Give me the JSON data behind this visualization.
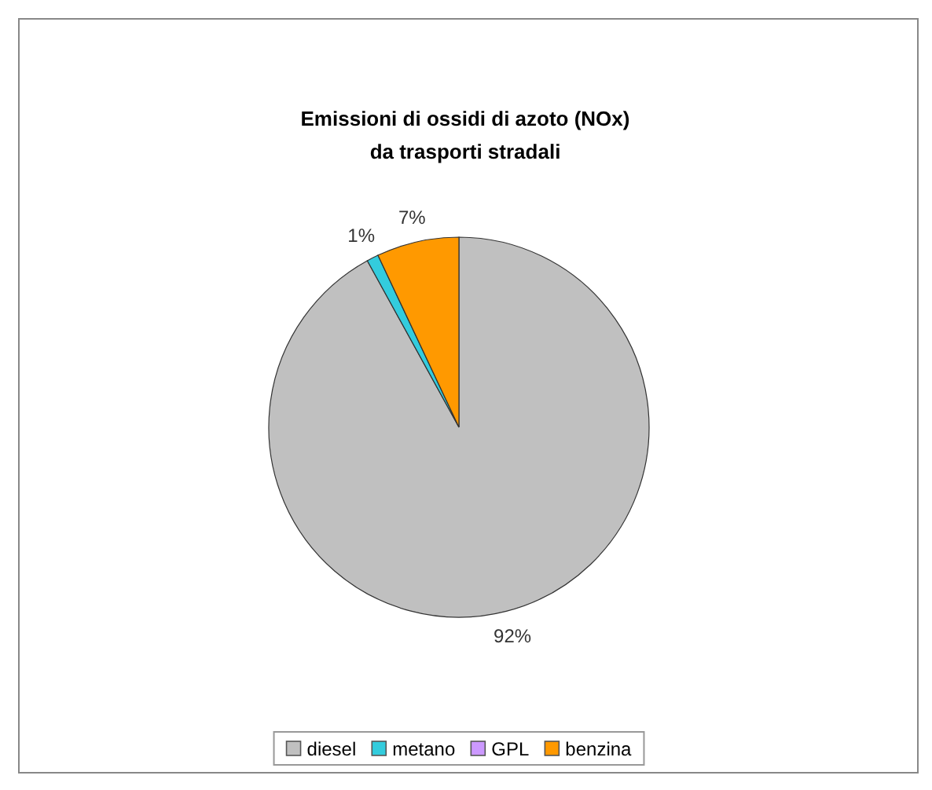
{
  "chart_data": {
    "type": "pie",
    "title": "Emissioni di ossidi di azoto (NOx)\nda trasporti stradali",
    "categories": [
      "diesel",
      "metano",
      "GPL",
      "benzina"
    ],
    "values": [
      92,
      1,
      0,
      7
    ],
    "colors": [
      "#c0c0c0",
      "#33ccdd",
      "#cc99ff",
      "#ff9900"
    ],
    "value_labels": [
      "92%",
      "1%",
      null,
      "7%"
    ],
    "legend": "bottom"
  }
}
